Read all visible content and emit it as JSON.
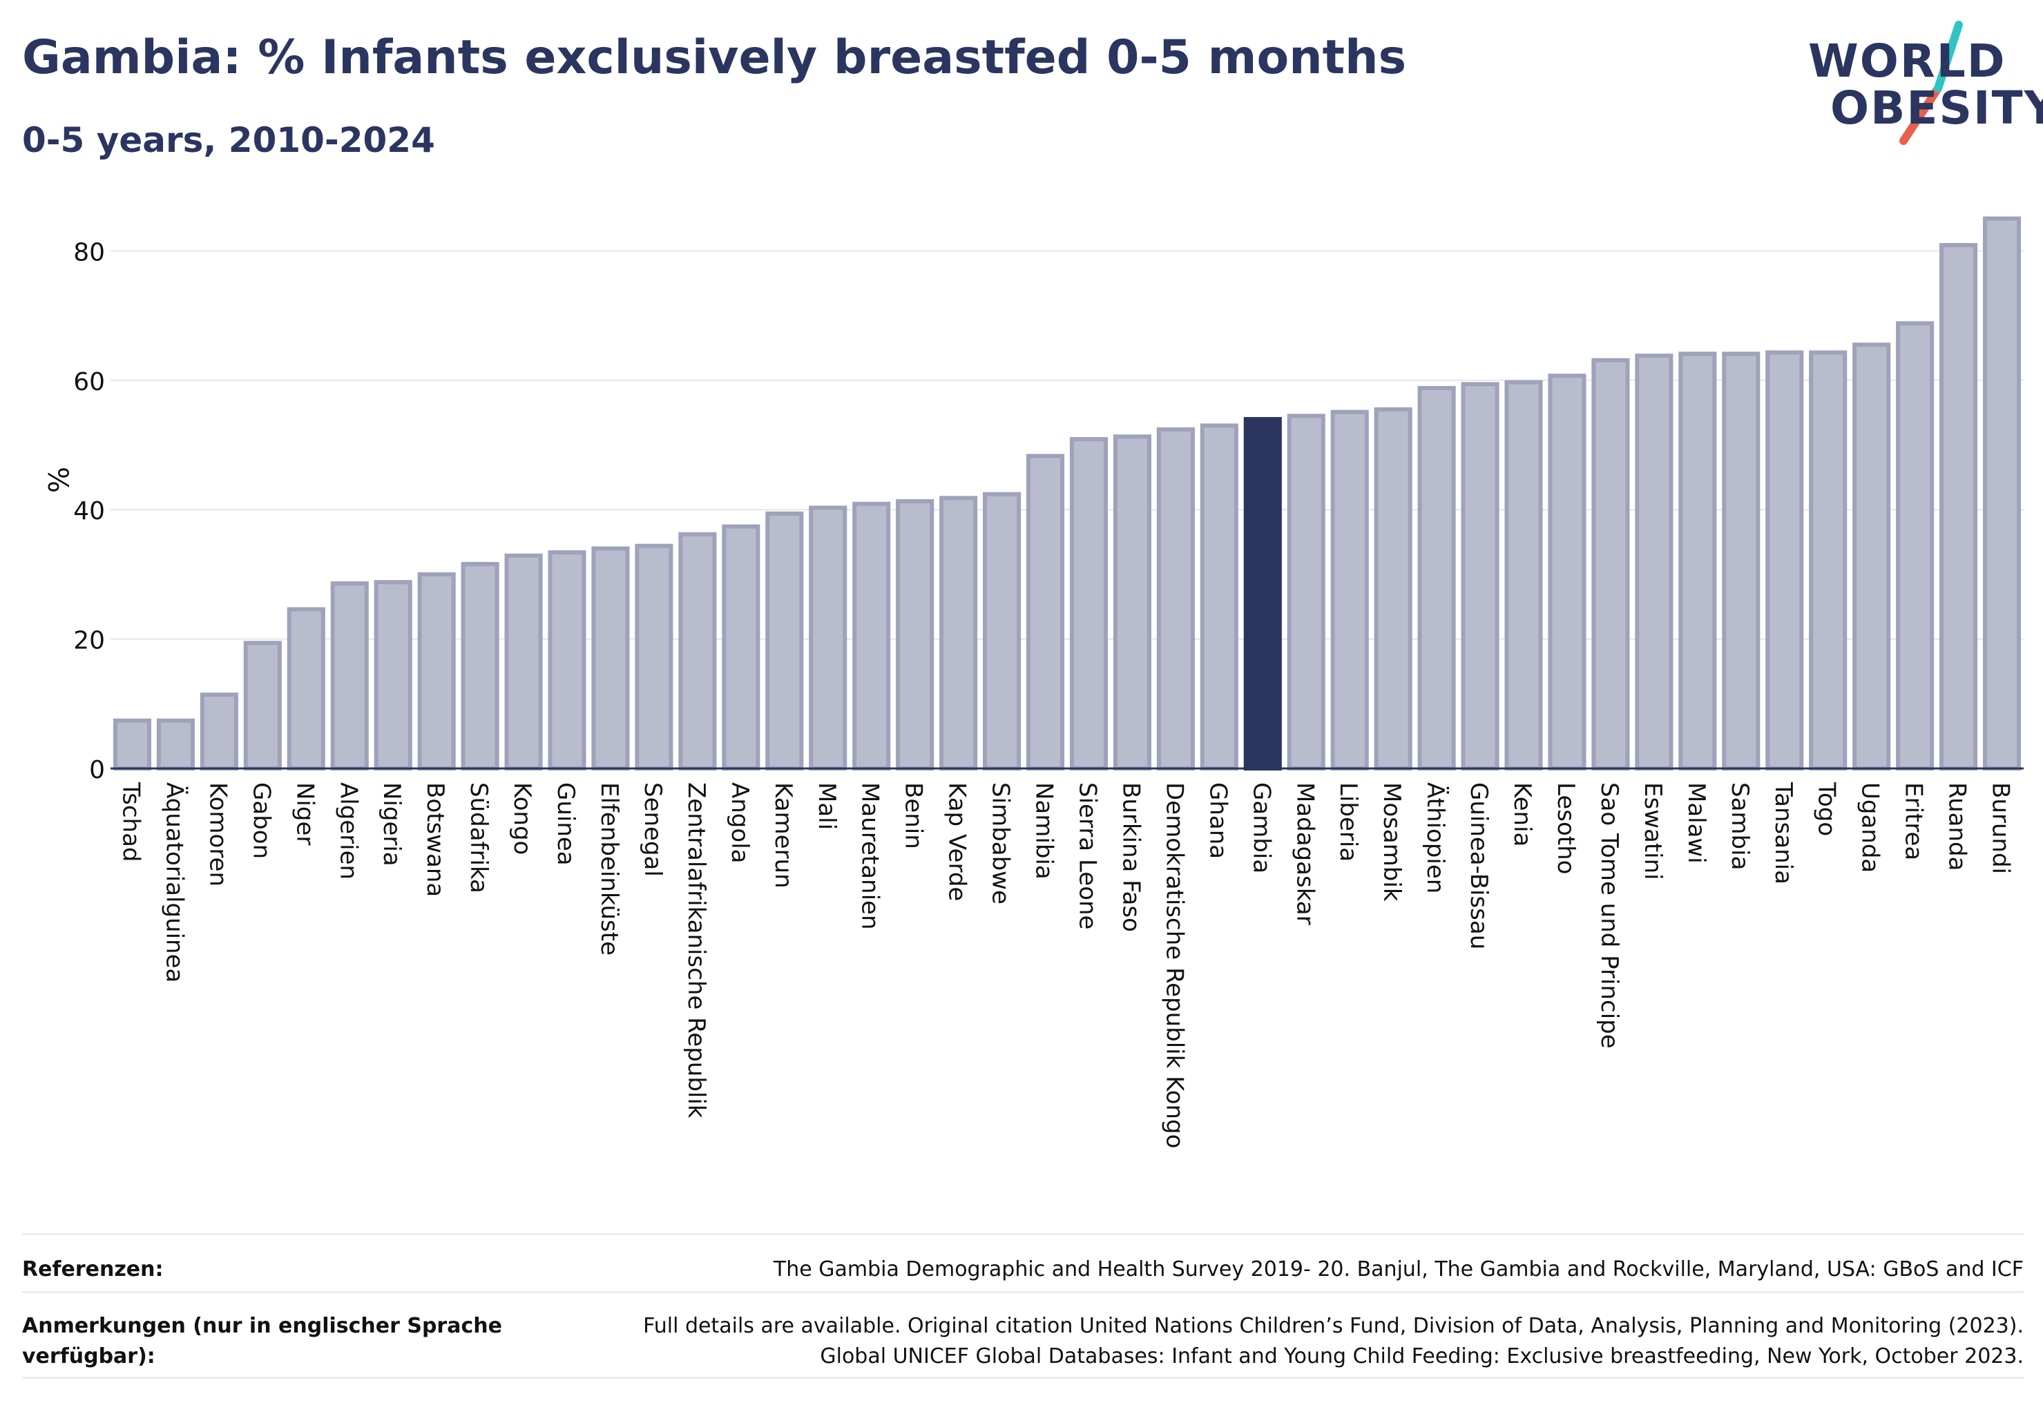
{
  "title": "Gambia: % Infants exclusively breastfed 0-5 months",
  "subtitle": "0-5 years, 2010-2024",
  "logo": {
    "line1": "WORLD",
    "line2": "OBESITY",
    "accent_colors": [
      "#2ec4c4",
      "#e8604c"
    ]
  },
  "colors": {
    "bar": "#b9bccc",
    "bar_edge": "#9ea2ba",
    "highlight": "#2a3560",
    "grid": "#e6e6e6",
    "axis": "#2a3560"
  },
  "chart_data": {
    "type": "bar",
    "ylabel": "%",
    "xlabel": "",
    "ylim": [
      0,
      90
    ],
    "yticks": [
      0,
      20,
      40,
      60,
      80
    ],
    "grid": true,
    "highlight": "Gambia",
    "categories": [
      "Tschad",
      "Äquatorialguinea",
      "Komoren",
      "Gabon",
      "Niger",
      "Algerien",
      "Nigeria",
      "Botswana",
      "Südafrika",
      "Kongo",
      "Guinea",
      "Elfenbeinküste",
      "Senegal",
      "Zentralafrikanische Republik",
      "Angola",
      "Kamerun",
      "Mali",
      "Mauretanien",
      "Benin",
      "Kap Verde",
      "Simbabwe",
      "Namibia",
      "Sierra Leone",
      "Burkina Faso",
      "Demokratische Republik Kongo",
      "Ghana",
      "Gambia",
      "Madagaskar",
      "Liberia",
      "Mosambik",
      "Äthiopien",
      "Guinea-Bissau",
      "Kenia",
      "Lesotho",
      "Sao Tome und Principe",
      "Eswatini",
      "Malawi",
      "Sambia",
      "Tansania",
      "Togo",
      "Uganda",
      "Eritrea",
      "Ruanda",
      "Burundi"
    ],
    "values": [
      7.4,
      7.4,
      11.4,
      19.4,
      24.6,
      28.6,
      28.8,
      30.0,
      31.6,
      32.9,
      33.4,
      34.0,
      34.4,
      36.2,
      37.4,
      39.4,
      40.3,
      40.9,
      41.3,
      41.8,
      42.4,
      48.3,
      50.9,
      51.3,
      52.4,
      53.0,
      54.0,
      54.5,
      55.1,
      55.5,
      58.8,
      59.4,
      59.7,
      60.7,
      63.1,
      63.8,
      64.1,
      64.1,
      64.3,
      64.3,
      65.5,
      68.8,
      80.9,
      85.0
    ]
  },
  "footer": {
    "references_label": "Referenzen:",
    "references_text": "The Gambia Demographic and Health Survey 2019- 20. Banjul, The Gambia and Rockville, Maryland, USA: GBoS and ICF",
    "notes_label_line1": "Anmerkungen (nur in englischer Sprache",
    "notes_label_line2": "verfügbar):",
    "notes_text_line1": "Full details are available. Original citation United Nations Children’s Fund, Division of Data, Analysis, Planning and Monitoring (2023).",
    "notes_text_line2": "Global UNICEF Global Databases: Infant and Young Child Feeding: Exclusive breastfeeding, New York, October 2023."
  }
}
